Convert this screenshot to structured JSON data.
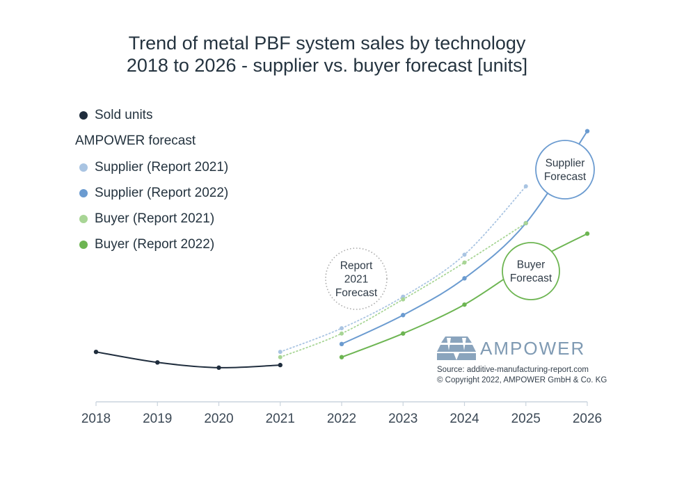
{
  "chart_data": {
    "type": "line",
    "title_lines": [
      "Trend of metal PBF system sales by technology",
      "2018 to 2026 - supplier vs. buyer forecast [units]"
    ],
    "xlabel": "",
    "ylabel": "",
    "x": [
      "2018",
      "2019",
      "2020",
      "2021",
      "2022",
      "2023",
      "2024",
      "2025",
      "2026"
    ],
    "ylim": [
      0,
      100
    ],
    "grid": false,
    "legend_position": "top-left",
    "legend_header": "AMPOWER forecast",
    "series": [
      {
        "name": "Sold units",
        "color": "#1f2d3d",
        "style": "solid",
        "markers": true,
        "points": [
          [
            "2018",
            19
          ],
          [
            "2019",
            15
          ],
          [
            "2020",
            13
          ],
          [
            "2021",
            14
          ]
        ]
      },
      {
        "name": "Supplier (Report 2021)",
        "color": "#a9c4e2",
        "style": "dotted",
        "markers": true,
        "points": [
          [
            "2021",
            19
          ],
          [
            "2022",
            28
          ],
          [
            "2023",
            40
          ],
          [
            "2024",
            56
          ],
          [
            "2025",
            82
          ]
        ]
      },
      {
        "name": "Supplier (Report 2022)",
        "color": "#6b9bd0",
        "style": "solid",
        "markers": true,
        "points": [
          [
            "2022",
            22
          ],
          [
            "2023",
            33
          ],
          [
            "2024",
            47
          ],
          [
            "2025",
            68
          ],
          [
            "2026",
            103
          ]
        ]
      },
      {
        "name": "Buyer (Report 2021)",
        "color": "#a8d595",
        "style": "dotted",
        "markers": true,
        "points": [
          [
            "2021",
            17
          ],
          [
            "2022",
            26
          ],
          [
            "2023",
            39
          ],
          [
            "2024",
            53
          ],
          [
            "2025",
            68
          ]
        ]
      },
      {
        "name": "Buyer (Report 2022)",
        "color": "#6db552",
        "style": "solid",
        "markers": true,
        "points": [
          [
            "2022",
            17
          ],
          [
            "2023",
            26
          ],
          [
            "2024",
            37
          ],
          [
            "2025",
            52
          ],
          [
            "2026",
            64
          ]
        ]
      }
    ],
    "annotations": [
      {
        "text_lines": [
          "Report",
          "2021",
          "Forecast"
        ],
        "style": "dotted-circle",
        "color": "#aaaaaa"
      },
      {
        "text_lines": [
          "Supplier",
          "Forecast"
        ],
        "style": "circle",
        "color": "#6b9bd0"
      },
      {
        "text_lines": [
          "Buyer",
          "Forecast"
        ],
        "style": "circle",
        "color": "#6db552"
      }
    ]
  },
  "branding": {
    "logo_text": "AMPOWER",
    "logo_color": "#7f9ab3",
    "source_line": "Source: additive-manufacturing-report.com",
    "copyright_line": "© Copyright 2022, AMPOWER GmbH & Co. KG"
  }
}
